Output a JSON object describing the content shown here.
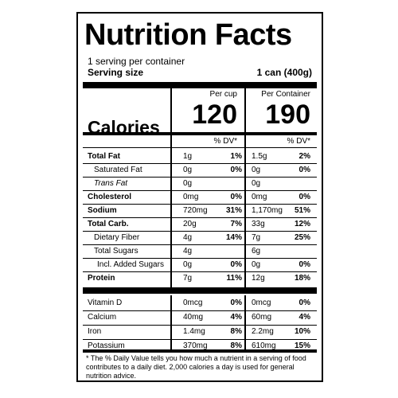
{
  "title": "Nutrition Facts",
  "servings_per_container": "1 serving per container",
  "serving_size_label": "Serving size",
  "serving_size_value": "1 can (400g)",
  "col1_header": "Per cup",
  "col2_header": "Per Container",
  "calories_label": "Calories",
  "calories_col1": "120",
  "calories_col2": "190",
  "dv_header_col1": "% DV*",
  "dv_header_col2": "% DV*",
  "nutrients": [
    {
      "name": "Total Fat",
      "a1": "1g",
      "p1": "1%",
      "a2": "1.5g",
      "p2": "2%"
    },
    {
      "name": "Saturated Fat",
      "a1": "0g",
      "p1": "0%",
      "a2": "0g",
      "p2": "0%"
    },
    {
      "name": "Trans Fat",
      "a1": "0g",
      "p1": "",
      "a2": "0g",
      "p2": ""
    },
    {
      "name": "Cholesterol",
      "a1": "0mg",
      "p1": "0%",
      "a2": "0mg",
      "p2": "0%"
    },
    {
      "name": "Sodium",
      "a1": "720mg",
      "p1": "31%",
      "a2": "1,170mg",
      "p2": "51%"
    },
    {
      "name": "Total Carb.",
      "a1": "20g",
      "p1": "7%",
      "a2": "33g",
      "p2": "12%"
    },
    {
      "name": "Dietary Fiber",
      "a1": "4g",
      "p1": "14%",
      "a2": "7g",
      "p2": "25%"
    },
    {
      "name": "Total Sugars",
      "a1": "4g",
      "p1": "",
      "a2": "6g",
      "p2": ""
    },
    {
      "name": "Incl. Added Sugars",
      "a1": "0g",
      "p1": "0%",
      "a2": "0g",
      "p2": "0%"
    },
    {
      "name": "Protein",
      "a1": "7g",
      "p1": "11%",
      "a2": "12g",
      "p2": "18%"
    }
  ],
  "vitamins": [
    {
      "name": "Vitamin D",
      "a1": "0mcg",
      "p1": "0%",
      "a2": "0mcg",
      "p2": "0%"
    },
    {
      "name": "Calcium",
      "a1": "40mg",
      "p1": "4%",
      "a2": "60mg",
      "p2": "4%"
    },
    {
      "name": "Iron",
      "a1": "1.4mg",
      "p1": "8%",
      "a2": "2.2mg",
      "p2": "10%"
    },
    {
      "name": "Potassium",
      "a1": "370mg",
      "p1": "8%",
      "a2": "610mg",
      "p2": "15%"
    }
  ],
  "footnote": "* The % Daily Value tells you how much a nutrient in a serving of food contributes to a daily diet. 2,000 calories a day is used for general nutrition advice."
}
